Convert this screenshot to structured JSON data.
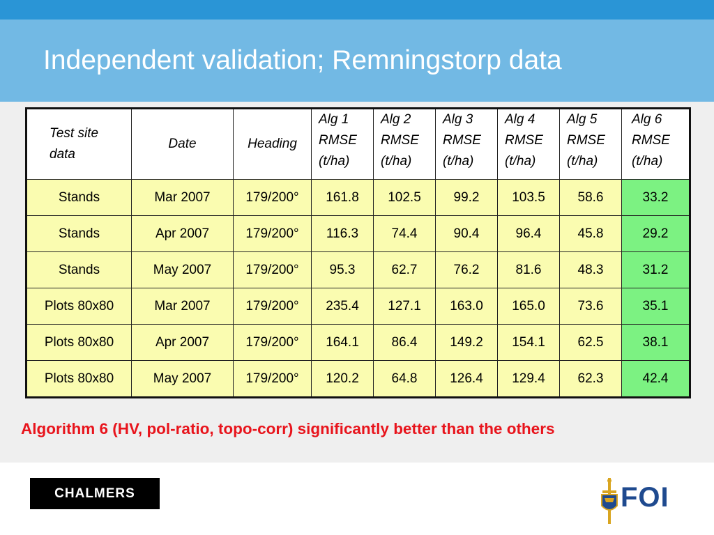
{
  "slide": {
    "title": "Independent validation; Remningstorp data",
    "note": "Algorithm 6 (HV, pol-ratio, topo-corr) significantly better than the others"
  },
  "table": {
    "headers": [
      [
        "Test site",
        "data"
      ],
      [
        "Date"
      ],
      [
        "Heading"
      ],
      [
        "Alg 1",
        "RMSE",
        "(t/ha)"
      ],
      [
        "Alg 2",
        "RMSE",
        "(t/ha)"
      ],
      [
        "Alg 3",
        "RMSE",
        "(t/ha)"
      ],
      [
        "Alg 4",
        "RMSE",
        "(t/ha)"
      ],
      [
        "Alg 5",
        "RMSE",
        "(t/ha)"
      ],
      [
        "Alg 6",
        "RMSE",
        "(t/ha)"
      ]
    ],
    "rows": [
      [
        "Stands",
        "Mar 2007",
        "179/200°",
        "161.8",
        "102.5",
        "99.2",
        "103.5",
        "58.6",
        "33.2"
      ],
      [
        "Stands",
        "Apr 2007",
        "179/200°",
        "116.3",
        "74.4",
        "90.4",
        "96.4",
        "45.8",
        "29.2"
      ],
      [
        "Stands",
        "May 2007",
        "179/200°",
        "95.3",
        "62.7",
        "76.2",
        "81.6",
        "48.3",
        "31.2"
      ],
      [
        "Plots 80x80",
        "Mar 2007",
        "179/200°",
        "235.4",
        "127.1",
        "163.0",
        "165.0",
        "73.6",
        "35.1"
      ],
      [
        "Plots 80x80",
        "Apr 2007",
        "179/200°",
        "164.1",
        "86.4",
        "149.2",
        "154.1",
        "62.5",
        "38.1"
      ],
      [
        "Plots 80x80",
        "May 2007",
        "179/200°",
        "120.2",
        "64.8",
        "126.4",
        "129.4",
        "62.3",
        "42.4"
      ]
    ]
  },
  "logos": {
    "left": "CHALMERS",
    "right": "FOI"
  },
  "colors": {
    "top_strip": "#2a95d6",
    "title_band": "#72b9e4",
    "cell_yellow": "#fafcb0",
    "cell_green": "#7cf282",
    "note_red": "#e8141c"
  }
}
